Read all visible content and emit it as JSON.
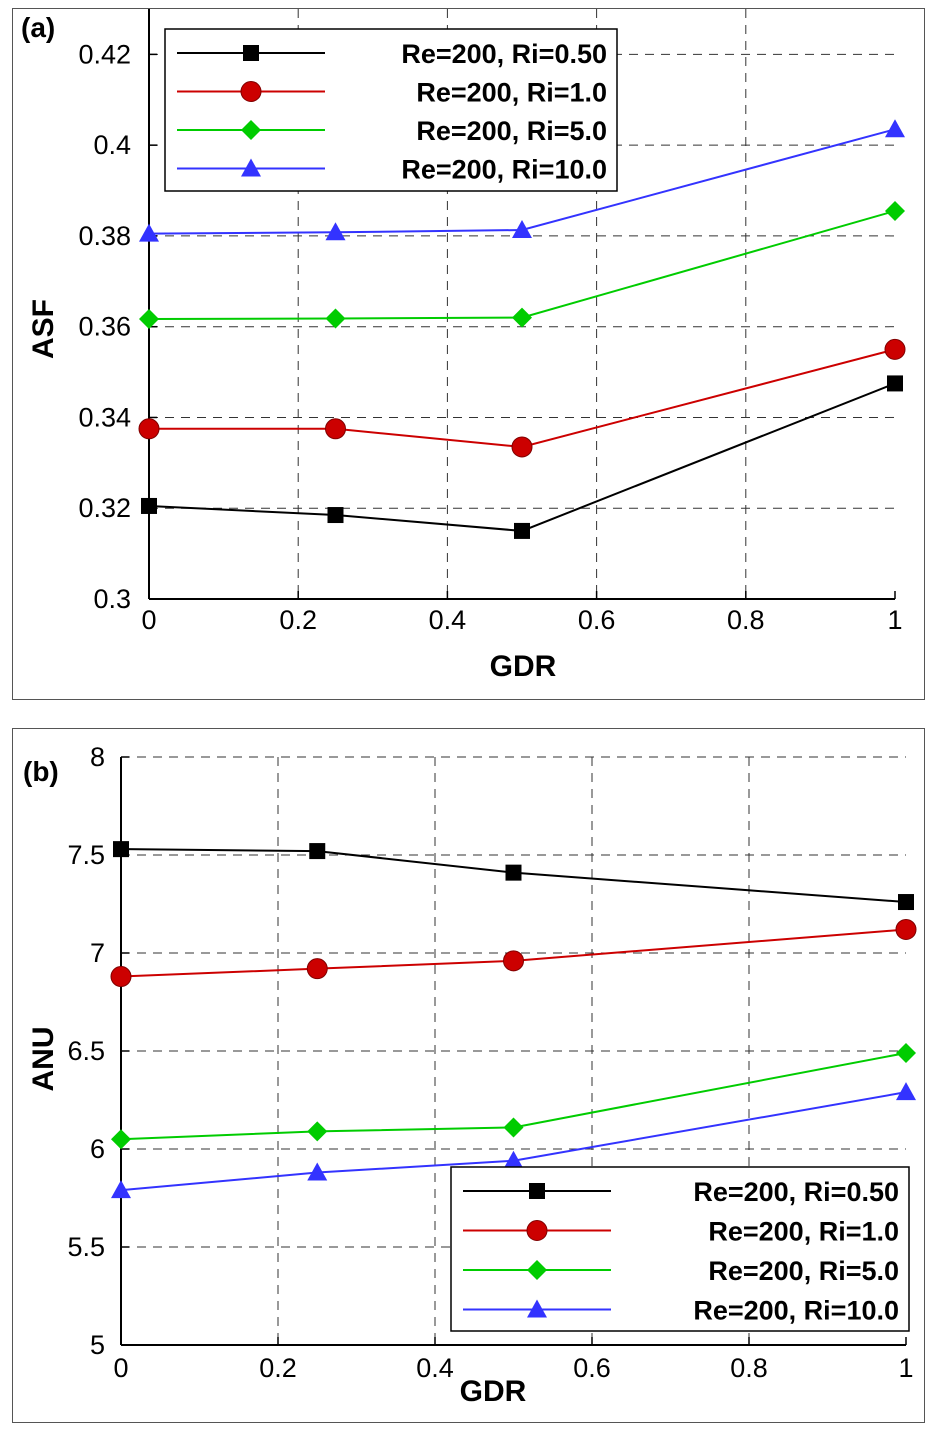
{
  "chart_data": [
    {
      "type": "line",
      "panel_label": "(a)",
      "xlabel": "GDR",
      "ylabel": "ASF",
      "xlim": [
        0,
        1
      ],
      "ylim": [
        0.3,
        0.43
      ],
      "xticks": [
        0,
        0.2,
        0.4,
        0.6,
        0.8,
        1
      ],
      "xtick_labels": [
        "0",
        "0.2",
        "0.4",
        "0.6",
        "0.8",
        "1"
      ],
      "yticks": [
        0.3,
        0.32,
        0.34,
        0.36,
        0.38,
        0.4,
        0.42
      ],
      "ytick_labels": [
        "0.3",
        "0.32",
        "0.34",
        "0.36",
        "0.38",
        "0.4",
        "0.42"
      ],
      "grid": true,
      "legend_position": "top-left",
      "x": [
        0,
        0.25,
        0.5,
        1
      ],
      "series": [
        {
          "name": "Re=200, Ri=0.50",
          "color": "#000000",
          "marker": "square",
          "values": [
            0.3205,
            0.3185,
            0.315,
            0.3475
          ]
        },
        {
          "name": "Re=200, Ri=1.0",
          "color": "#cc0000",
          "marker": "circle",
          "values": [
            0.3375,
            0.3375,
            0.3335,
            0.355
          ]
        },
        {
          "name": "Re=200, Ri=5.0",
          "color": "#00cc00",
          "marker": "diamond",
          "values": [
            0.3617,
            0.3618,
            0.362,
            0.3855
          ]
        },
        {
          "name": "Re=200, Ri=10.0",
          "color": "#3333ff",
          "marker": "triangle",
          "values": [
            0.3805,
            0.3808,
            0.3813,
            0.4035
          ]
        }
      ]
    },
    {
      "type": "line",
      "panel_label": "(b)",
      "xlabel": "GDR",
      "ylabel": "ANU",
      "xlim": [
        0,
        1
      ],
      "ylim": [
        5,
        8
      ],
      "xticks": [
        0,
        0.2,
        0.4,
        0.6,
        0.8,
        1
      ],
      "xtick_labels": [
        "0",
        "0.2",
        "0.4",
        "0.6",
        "0.8",
        "1"
      ],
      "yticks": [
        5,
        5.5,
        6,
        6.5,
        7,
        7.5,
        8
      ],
      "ytick_labels": [
        "5",
        "5.5",
        "6",
        "6.5",
        "7",
        "7.5",
        "8"
      ],
      "grid": true,
      "legend_position": "bottom-right",
      "x": [
        0,
        0.25,
        0.5,
        1
      ],
      "series": [
        {
          "name": "Re=200, Ri=0.50",
          "color": "#000000",
          "marker": "square",
          "values": [
            7.53,
            7.52,
            7.41,
            7.26
          ]
        },
        {
          "name": "Re=200, Ri=1.0",
          "color": "#cc0000",
          "marker": "circle",
          "values": [
            6.88,
            6.92,
            6.96,
            7.12
          ]
        },
        {
          "name": "Re=200, Ri=5.0",
          "color": "#00cc00",
          "marker": "diamond",
          "values": [
            6.05,
            6.09,
            6.11,
            6.49
          ]
        },
        {
          "name": "Re=200, Ri=10.0",
          "color": "#3333ff",
          "marker": "triangle",
          "values": [
            5.79,
            5.88,
            5.94,
            6.29
          ]
        }
      ]
    }
  ]
}
